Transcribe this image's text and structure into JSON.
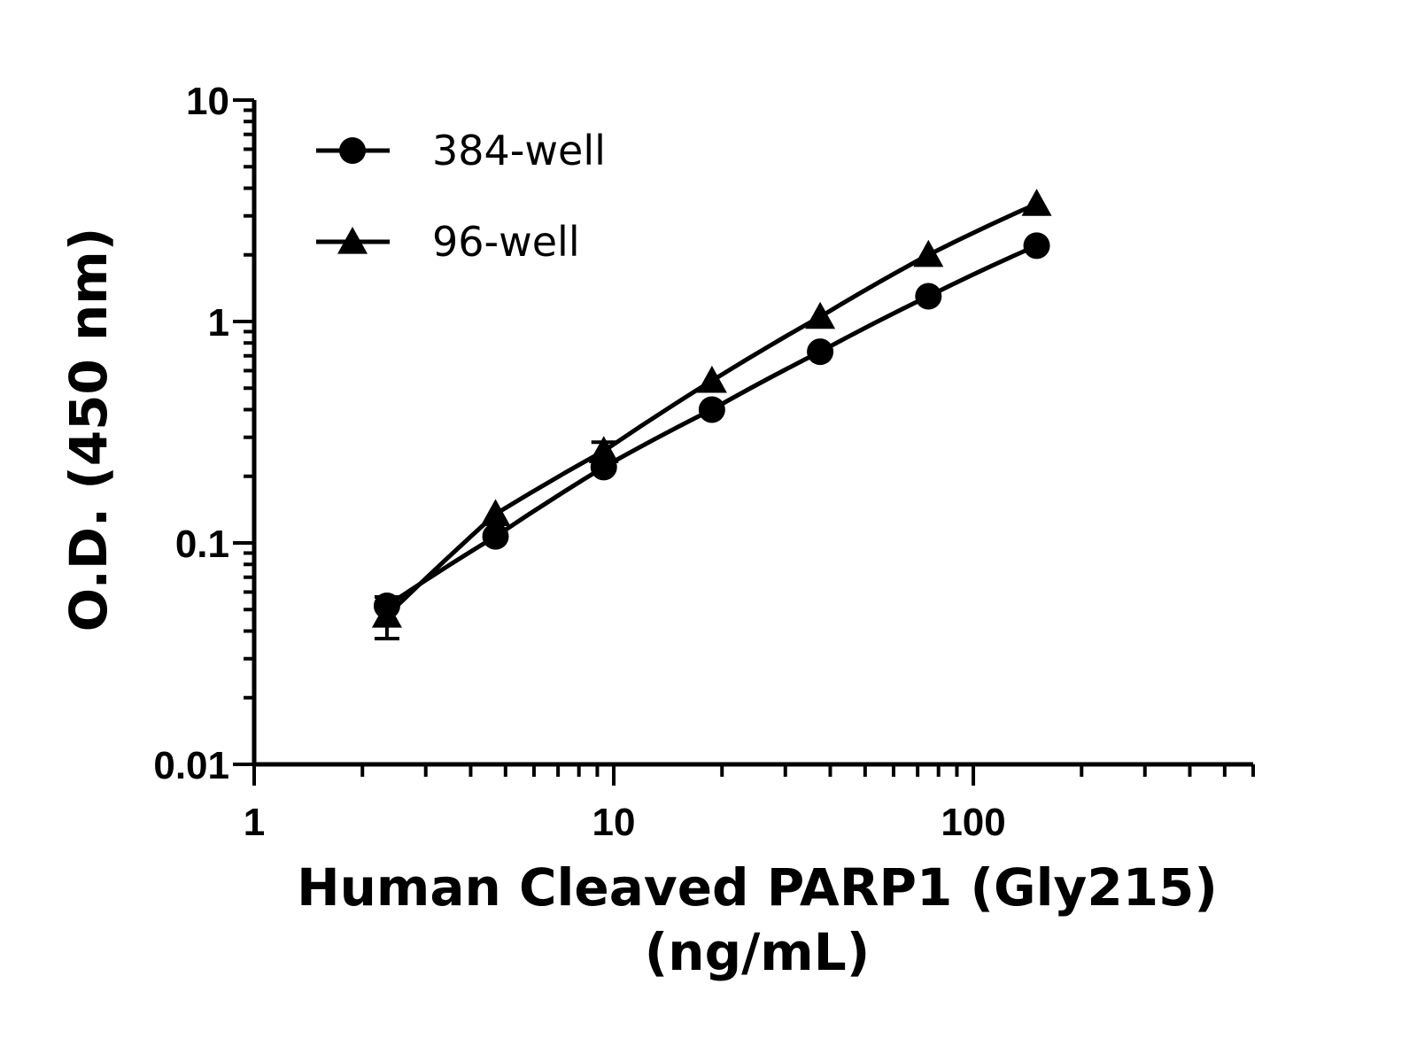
{
  "chart_data": {
    "type": "line",
    "title": "",
    "xlabel_lines": [
      "Human Cleaved PARP1 (Gly215)",
      "(ng/mL)"
    ],
    "ylabel": "O.D. (450 nm)",
    "xscale": "log",
    "yscale": "log",
    "xlim": [
      1,
      600
    ],
    "ylim": [
      0.01,
      10
    ],
    "xticks": [
      1,
      10,
      100
    ],
    "xtick_labels": [
      "1",
      "10",
      "100"
    ],
    "yticks": [
      0.01,
      0.1,
      1,
      10
    ],
    "ytick_labels": [
      "0.01",
      "0.1",
      "1",
      "10"
    ],
    "legend_position": "top-left",
    "series": [
      {
        "name": "384-well",
        "marker": "circle",
        "x": [
          2.34,
          4.69,
          9.38,
          18.75,
          37.5,
          75,
          150
        ],
        "y": [
          0.052,
          0.107,
          0.22,
          0.4,
          0.73,
          1.3,
          2.2
        ],
        "err": [
          0.0,
          0.0,
          0.0,
          0.0,
          0.0,
          0.0,
          0.0
        ]
      },
      {
        "name": "96-well",
        "marker": "triangle",
        "x": [
          2.34,
          4.69,
          9.38,
          18.75,
          37.5,
          75,
          150
        ],
        "y": [
          0.047,
          0.135,
          0.26,
          0.54,
          1.05,
          2.0,
          3.4
        ],
        "err": [
          0.01,
          0.0,
          0.025,
          0.0,
          0.0,
          0.0,
          0.0
        ]
      }
    ]
  }
}
